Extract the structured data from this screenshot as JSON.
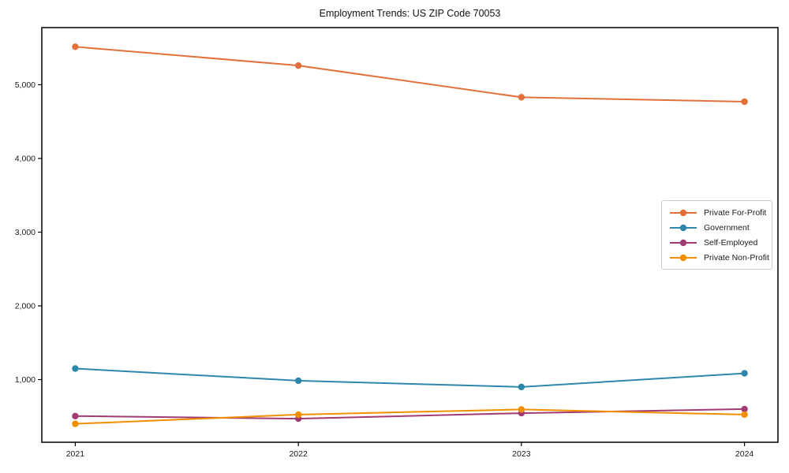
{
  "figure": {
    "background_color": "#ffffff",
    "axis_color": "#000000",
    "text_color": "#1a1a1a",
    "legend_border_color": "#cccccc"
  },
  "chart_data": {
    "type": "line",
    "title": "Employment Trends: US ZIP Code 70053",
    "xlabel": "",
    "ylabel": "",
    "grid": false,
    "legend_position": "center-right",
    "x": [
      2021,
      2022,
      2023,
      2024
    ],
    "x_tick_labels": [
      "2021",
      "2022",
      "2023",
      "2024"
    ],
    "y_ticks": [
      1000,
      2000,
      3000,
      4000,
      5000
    ],
    "y_tick_labels": [
      "1,000",
      "2,000",
      "3,000",
      "4,000",
      "5,000"
    ],
    "xlim": [
      2020.85,
      2024.15
    ],
    "ylim": [
      150,
      5775
    ],
    "series": [
      {
        "name": "Private For-Profit",
        "color": "#E2703A",
        "values": [
          5515,
          5260,
          4830,
          4770
        ]
      },
      {
        "name": "Government",
        "color": "#2E86AB",
        "values": [
          1150,
          985,
          900,
          1085
        ]
      },
      {
        "name": "Self-Employed",
        "color": "#A23B72",
        "values": [
          505,
          470,
          545,
          600
        ]
      },
      {
        "name": "Private Non-Profit",
        "color": "#F18F01",
        "values": [
          400,
          525,
          595,
          525
        ]
      }
    ]
  }
}
